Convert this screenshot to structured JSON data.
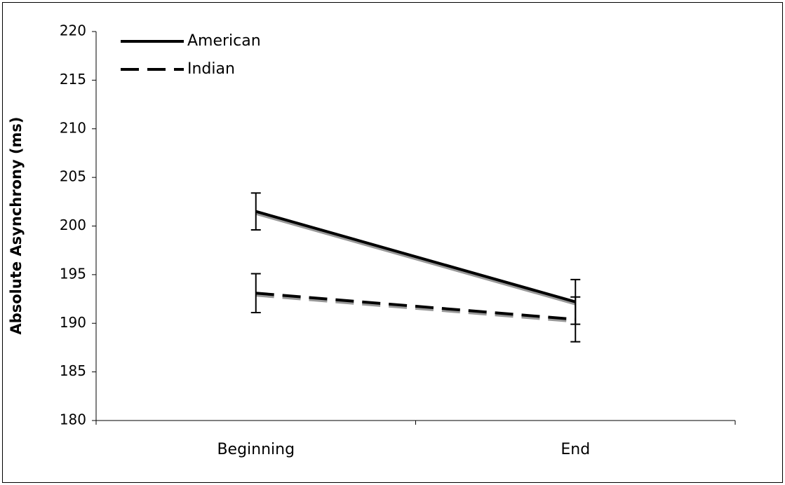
{
  "chart_data": {
    "type": "line",
    "y_label": "Absolute Asynchrony (ms)",
    "categories": [
      "Beginning",
      "End"
    ],
    "series": [
      {
        "name": "American",
        "color": "#000000",
        "dash": "solid",
        "values": [
          201.5,
          192.2
        ],
        "errors": [
          1.9,
          2.3
        ]
      },
      {
        "name": "Indian",
        "color": "#000000",
        "dash": "dashed",
        "values": [
          193.1,
          190.4
        ],
        "errors": [
          2.0,
          2.3
        ]
      }
    ],
    "ylim": [
      180,
      220
    ],
    "yticks": [
      180,
      185,
      190,
      195,
      200,
      205,
      210,
      215,
      220
    ],
    "legend": "upper left"
  }
}
